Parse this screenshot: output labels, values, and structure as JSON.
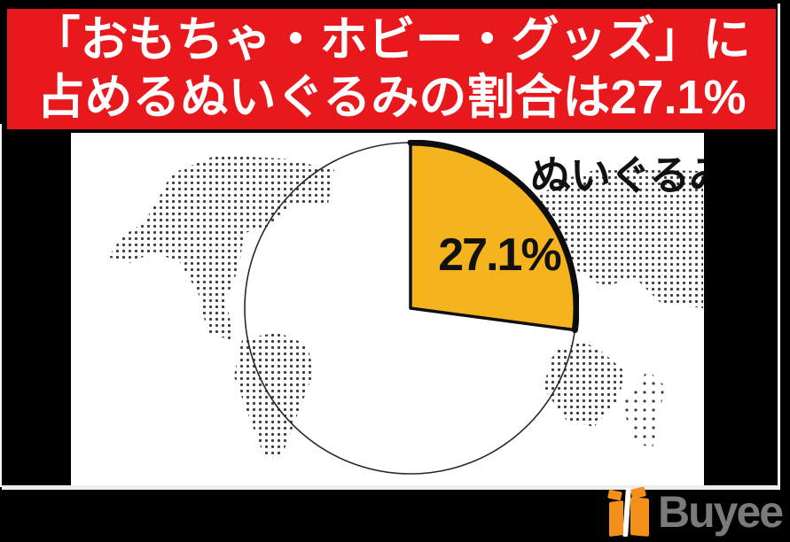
{
  "banner": {
    "line1": "「おもちゃ・ホビー・グッズ」に",
    "line2": "占めるぬいぐるみの割合は27.1%"
  },
  "chart_data": {
    "type": "pie",
    "title": "「おもちゃ・ホビー・グッズ」に占めるぬいぐるみの割合は27.1%",
    "slices": [
      {
        "label": "ぬいぐるみ",
        "value": 27.1,
        "color": "#F5B41E"
      },
      {
        "label": "",
        "value": 72.9,
        "color": "#FFFFFF"
      }
    ],
    "unit": "%",
    "start_angle_deg": 0,
    "direction": "clockwise",
    "legend": "none",
    "annotations": {
      "value_label": "27.1%",
      "callout": "ぬいぐるみ"
    },
    "background": "dotted-world-map"
  },
  "footer": {
    "brand": "Buyee"
  },
  "colors": {
    "banner_red": "#E8191D",
    "slice_orange": "#F5B41E",
    "pie_outline": "#1A1A1A",
    "map_dot": "#3E3E3E",
    "logo_orange": "#F29019",
    "logo_gray": "#7A7A7A",
    "frame_black": "#000000"
  }
}
